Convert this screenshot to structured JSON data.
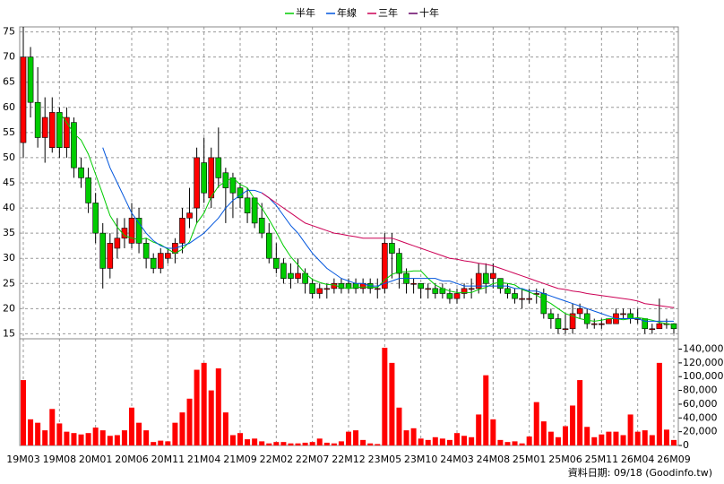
{
  "chart_data": {
    "type": "candlestick",
    "legend_position": "top",
    "footer": "資料日期: 09/18 (Goodinfo.tw)",
    "categories": [
      "19M03",
      null,
      null,
      null,
      null,
      "19M08",
      null,
      null,
      null,
      null,
      "20M01",
      null,
      null,
      null,
      null,
      "20M06",
      null,
      null,
      null,
      null,
      "20M11",
      null,
      null,
      null,
      null,
      "21M04",
      null,
      null,
      null,
      null,
      "21M09",
      null,
      null,
      null,
      null,
      "22M02",
      null,
      null,
      null,
      null,
      "22M07",
      null,
      null,
      null,
      null,
      "22M12",
      null,
      null,
      null,
      null,
      "23M05",
      null,
      null,
      null,
      null,
      "23M10",
      null,
      null,
      null,
      null,
      "24M03",
      null,
      null,
      null,
      null,
      "24M08",
      null,
      null,
      null,
      null,
      "25M01",
      null,
      null,
      null,
      null,
      "25M06",
      null,
      null,
      null,
      null,
      "25M11",
      null,
      null,
      null,
      null,
      "26M04",
      null,
      null,
      null,
      null,
      "26M09"
    ],
    "open": [
      53,
      70,
      61,
      54,
      52,
      59,
      52,
      57,
      48,
      46,
      41,
      35,
      28,
      32,
      34,
      33,
      38,
      33,
      30,
      28,
      30,
      31,
      33,
      38,
      40,
      49,
      42,
      50,
      47,
      46,
      44,
      42,
      42,
      38,
      35,
      30,
      29,
      27,
      26,
      27,
      25,
      23,
      24,
      24,
      25,
      25,
      25,
      24,
      25,
      24,
      24,
      33,
      31,
      27,
      25,
      25,
      24,
      24,
      24,
      23,
      22,
      23,
      24,
      24,
      27,
      26,
      26,
      24,
      23,
      22,
      22,
      23,
      23,
      19,
      18,
      16,
      16,
      19,
      19,
      17,
      17,
      17,
      17,
      19,
      19,
      18,
      18,
      16,
      16,
      17,
      17
    ],
    "high": [
      76,
      72,
      68,
      62,
      62,
      60,
      60,
      58,
      50,
      48,
      43,
      37,
      35,
      38,
      38,
      41,
      40,
      34,
      31,
      32,
      32,
      34,
      40,
      44,
      52,
      54,
      52,
      56,
      48,
      47,
      45,
      44,
      42,
      41,
      37,
      33,
      30,
      29,
      30,
      28,
      26,
      25,
      25,
      26,
      26,
      26,
      26,
      26,
      26,
      26,
      35,
      35,
      32,
      28,
      26,
      25,
      25,
      25,
      25,
      24,
      24,
      25,
      26,
      29,
      29,
      29,
      26,
      25,
      24,
      24,
      24,
      24,
      24,
      20,
      19,
      19,
      21,
      21,
      20,
      18,
      18,
      18,
      20,
      20,
      20,
      20,
      18,
      17,
      22,
      18,
      17
    ],
    "low": [
      50,
      58,
      52,
      49,
      51,
      50,
      50,
      46,
      44,
      39,
      33,
      24,
      26,
      30,
      32,
      32,
      31,
      28,
      27,
      27,
      29,
      29,
      31,
      36,
      37,
      41,
      40,
      44,
      37,
      38,
      40,
      37,
      36,
      34,
      29,
      27,
      25,
      24,
      25,
      23,
      22,
      22,
      22,
      23,
      23,
      23,
      23,
      23,
      23,
      22,
      23,
      26,
      24,
      23,
      23,
      22,
      22,
      22,
      22,
      21,
      21,
      22,
      22,
      23,
      23,
      24,
      23,
      22,
      21,
      20,
      21,
      21,
      18,
      16,
      15,
      15,
      15,
      18,
      16,
      16,
      16,
      17,
      17,
      18,
      17,
      17,
      15,
      15,
      16,
      16,
      15
    ],
    "close": [
      70,
      61,
      54,
      58,
      59,
      52,
      58,
      48,
      46,
      41,
      35,
      28,
      33,
      34,
      36,
      38,
      33,
      30,
      28,
      31,
      31,
      33,
      38,
      39,
      50,
      43,
      50,
      46,
      44,
      43,
      42,
      39,
      37,
      35,
      30,
      28,
      26,
      26,
      27,
      25,
      23,
      24,
      24,
      25,
      24,
      24,
      24,
      25,
      24,
      24,
      33,
      31,
      27,
      25,
      25,
      24,
      24,
      23,
      23,
      22,
      23,
      24,
      24,
      27,
      25,
      27,
      24,
      23,
      22,
      22,
      22,
      23,
      19,
      18,
      16,
      16,
      19,
      20,
      17,
      17,
      17,
      18,
      19,
      19,
      18,
      18,
      16,
      16,
      17,
      17,
      16
    ],
    "up_color": "#ff0000",
    "down_color": "#00cc00",
    "volume": [
      95000,
      38000,
      33000,
      22000,
      53000,
      32000,
      20000,
      18000,
      16000,
      18000,
      26000,
      22000,
      14000,
      15000,
      22000,
      55000,
      33000,
      22000,
      5000,
      7000,
      6000,
      33000,
      48000,
      68000,
      110000,
      120000,
      80000,
      112000,
      48000,
      15000,
      18000,
      9000,
      10000,
      6000,
      3000,
      5000,
      5000,
      3000,
      3000,
      4000,
      5000,
      10000,
      4000,
      3000,
      6000,
      20000,
      22000,
      8000,
      3000,
      2000,
      142000,
      120000,
      55000,
      22000,
      25000,
      10000,
      8000,
      12000,
      10000,
      8000,
      18000,
      14000,
      12000,
      45000,
      102000,
      38000,
      8000,
      5000,
      6000,
      3000,
      13000,
      63000,
      35000,
      20000,
      12000,
      28000,
      58000,
      95000,
      27000,
      12000,
      16000,
      20000,
      20000,
      15000,
      45000,
      20000,
      22000,
      15000,
      120000,
      23000,
      8000
    ],
    "volume_color": "#ff0000",
    "series": [
      {
        "name": "半年",
        "color": "#00cc00",
        "values": [
          null,
          null,
          null,
          null,
          null,
          59,
          57,
          54.8,
          53.5,
          50.7,
          46.7,
          42.7,
          38.5,
          36.2,
          34.5,
          34,
          33.7,
          34,
          33.2,
          32.7,
          31.8,
          31,
          31.8,
          33.3,
          37,
          39,
          42.2,
          44.3,
          45.3,
          46,
          44.7,
          44,
          41.8,
          40,
          37.7,
          35.2,
          32.5,
          30.3,
          28.7,
          27,
          25.8,
          25.2,
          24.8,
          24.7,
          24.2,
          24,
          24.2,
          24.3,
          24.3,
          24.2,
          25.7,
          26.8,
          27.3,
          27.3,
          27.5,
          27.5,
          26,
          24.7,
          24,
          23.5,
          23.2,
          23.2,
          23.2,
          23.8,
          24.2,
          25,
          25.2,
          25,
          24.7,
          23.8,
          23.3,
          22.7,
          21.8,
          21,
          20,
          19,
          18.5,
          18,
          17.7,
          17.5,
          17.7,
          18,
          18,
          17.8,
          18,
          18.2,
          18,
          17.7,
          17.3,
          17,
          16.7
        ]
      },
      {
        "name": "年線",
        "color": "#0055dd",
        "values": [
          null,
          null,
          null,
          null,
          null,
          null,
          null,
          null,
          null,
          null,
          null,
          52,
          48,
          45,
          42,
          39,
          37,
          35,
          33.5,
          32.5,
          32,
          32,
          32.5,
          33,
          34,
          35,
          36.5,
          38,
          40,
          41.5,
          42.5,
          43.5,
          43.5,
          43,
          42,
          40.5,
          38.5,
          36.5,
          35,
          33,
          31,
          29.5,
          28,
          27,
          26,
          25.5,
          25,
          25,
          24.5,
          24.5,
          25,
          25.5,
          26,
          26,
          26,
          26,
          26,
          26,
          25.5,
          25.5,
          25,
          24.5,
          24.5,
          24.5,
          24.5,
          24.5,
          24.5,
          24.5,
          24,
          24,
          23.5,
          23.5,
          23,
          22.5,
          22,
          21.5,
          21,
          20.5,
          20,
          19.5,
          19,
          18.5,
          18,
          18,
          18,
          18,
          17.5,
          17.5,
          17.5,
          17.5,
          17.5
        ]
      },
      {
        "name": "三年",
        "color": "#cc0055",
        "values": [
          null,
          null,
          null,
          null,
          null,
          null,
          null,
          null,
          null,
          null,
          null,
          null,
          null,
          null,
          null,
          null,
          null,
          null,
          null,
          null,
          null,
          null,
          null,
          null,
          null,
          null,
          null,
          null,
          null,
          null,
          null,
          null,
          null,
          43,
          42,
          41,
          40,
          39,
          38,
          37,
          36.5,
          36,
          35.5,
          35,
          34.8,
          34.5,
          34.3,
          34,
          34,
          34,
          34,
          34,
          33.5,
          33,
          32.5,
          32,
          31.5,
          31,
          30.5,
          30,
          29.8,
          29.5,
          29.3,
          29,
          28.8,
          28.5,
          28,
          27.5,
          27,
          26.5,
          26,
          25.5,
          25,
          24.5,
          24,
          23.8,
          23.5,
          23.3,
          23,
          22.8,
          22.6,
          22.4,
          22.2,
          22,
          21.8,
          21.5,
          21,
          20.8,
          20.6,
          20.4,
          20.2
        ]
      },
      {
        "name": "十年",
        "color": "#660066",
        "values": [
          null,
          null,
          null,
          null,
          null,
          null,
          null,
          null,
          null,
          null,
          null,
          null,
          null,
          null,
          null,
          null,
          null,
          null,
          null,
          null,
          null,
          null,
          null,
          null,
          null,
          null,
          null,
          null,
          null,
          null,
          null,
          null,
          null,
          null,
          null,
          null,
          null,
          null,
          null,
          null,
          null,
          null,
          null,
          null,
          null,
          null,
          null,
          null,
          null,
          null,
          null,
          null,
          null,
          null,
          null,
          null,
          null,
          null,
          null,
          null,
          null,
          null,
          null,
          null,
          null,
          null,
          null,
          null,
          null,
          null,
          null,
          null,
          null,
          null,
          null,
          null,
          null,
          null,
          null,
          null,
          null,
          null,
          null,
          null,
          null,
          null,
          null,
          null,
          null,
          null,
          null
        ]
      }
    ],
    "ylim": [
      14,
      76
    ],
    "yticks": [
      15,
      20,
      25,
      30,
      35,
      40,
      45,
      50,
      55,
      60,
      65,
      70,
      75
    ],
    "y2lim": [
      0,
      155000
    ],
    "y2ticks": [
      0,
      {
        "value": 20000,
        "label": "20,000"
      },
      {
        "value": 40000,
        "label": "40,000"
      },
      {
        "value": 60000,
        "label": "60,000"
      },
      {
        "value": 80000,
        "label": "80,000"
      },
      {
        "value": 100000,
        "label": "100,000"
      },
      {
        "value": 120000,
        "label": "120,000"
      },
      {
        "value": 140000,
        "label": "140,000"
      }
    ],
    "grid": true
  }
}
